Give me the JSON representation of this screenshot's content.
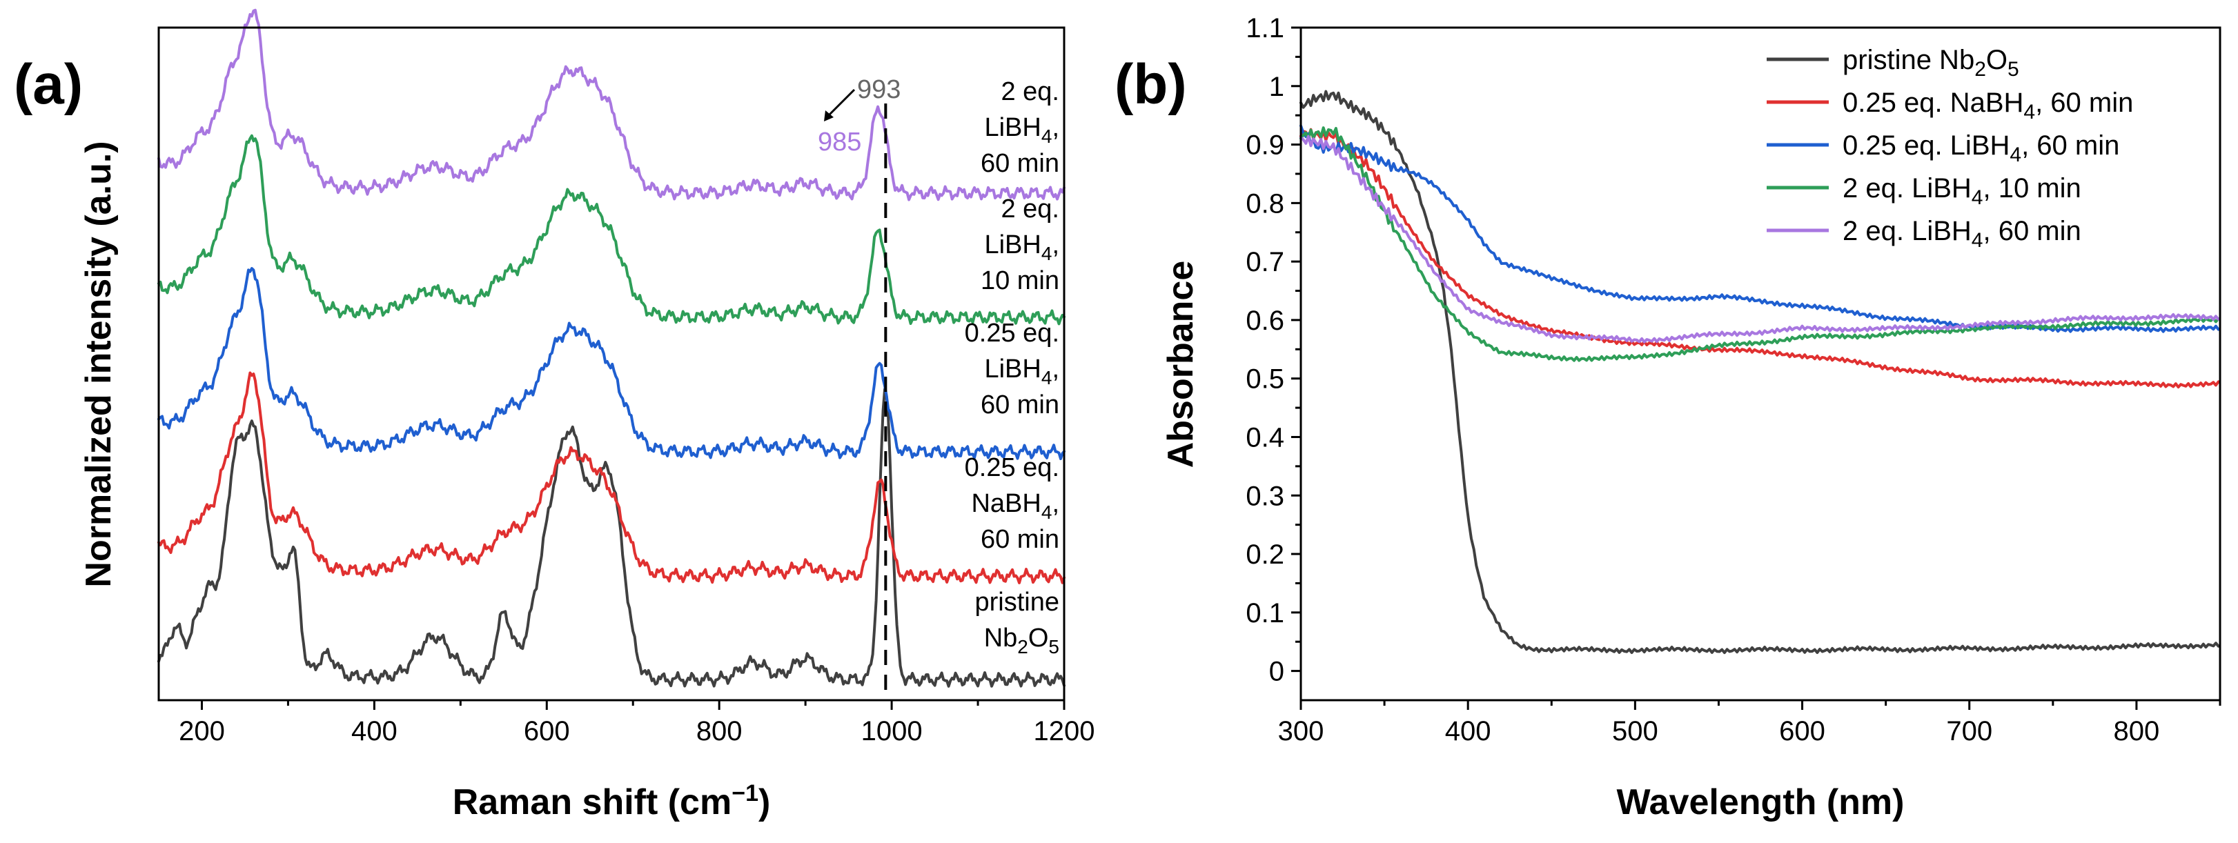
{
  "chart_data": [
    {
      "panel": "(a)",
      "type": "line",
      "xlabel": "Raman shift (cm",
      "xlabel_sup": "−1",
      "xlabel_end": ")",
      "ylabel": "Normalized intensity (a.u.)",
      "xlim": [
        150,
        1200
      ],
      "xticks": [
        200,
        400,
        600,
        800,
        1000,
        1200
      ],
      "yticks_shown": false,
      "grid": false,
      "reference_line": {
        "x": 993,
        "style": "dashed"
      },
      "annotations": {
        "peak_993": "993",
        "peak_985": "985"
      },
      "series": [
        {
          "name": "pristine Nb2O5",
          "label_lines": [
            [
              "pristine"
            ],
            [
              "Nb",
              {
                "sub": "2"
              },
              "O",
              {
                "sub": "5"
              }
            ]
          ],
          "color": "#404040",
          "offset": 0.0,
          "peak_center": 993
        },
        {
          "name": "0.25 eq. NaBH4, 60 min",
          "label_lines": [
            [
              "0.25 eq."
            ],
            [
              "NaBH",
              {
                "sub": "4"
              },
              ","
            ],
            [
              "60 min"
            ]
          ],
          "color": "#e03030",
          "offset": 1.0,
          "peak_center": 987
        },
        {
          "name": "0.25 eq. LiBH4, 60 min",
          "label_lines": [
            [
              "0.25 eq."
            ],
            [
              "LiBH",
              {
                "sub": "4"
              },
              ","
            ],
            [
              "60 min"
            ]
          ],
          "color": "#1f5fd0",
          "offset": 2.0,
          "peak_center": 986
        },
        {
          "name": "2 eq. LiBH4, 10 min",
          "label_lines": [
            [
              "2 eq."
            ],
            [
              "LiBH",
              {
                "sub": "4"
              },
              ","
            ],
            [
              "10 min"
            ]
          ],
          "color": "#2e9e58",
          "offset": 3.0,
          "peak_center": 985
        },
        {
          "name": "2 eq. LiBH4, 60 min",
          "label_lines": [
            [
              "2 eq."
            ],
            [
              "LiBH",
              {
                "sub": "4"
              },
              ","
            ],
            [
              "60 min"
            ]
          ],
          "color": "#a877e0",
          "offset": 4.0,
          "peak_center": 985
        }
      ]
    },
    {
      "panel": "(b)",
      "type": "line",
      "xlabel": "Wavelength (nm)",
      "ylabel": "Absorbance",
      "xlim": [
        300,
        850
      ],
      "ylim": [
        -0.05,
        1.1
      ],
      "xticks": [
        300,
        400,
        500,
        600,
        700,
        800
      ],
      "yticks": [
        0,
        0.1,
        0.2,
        0.3,
        0.4,
        0.5,
        0.6,
        0.7,
        0.8,
        0.9,
        1,
        1.1
      ],
      "ytick_labels": [
        "0",
        "0.1",
        "0.2",
        "0.3",
        "0.4",
        "0.5",
        "0.6",
        "0.7",
        "0.8",
        "0.9",
        "1",
        "1.1"
      ],
      "grid": false,
      "legend": "top-right",
      "series": [
        {
          "name": "pristine Nb2O5",
          "legend_parts": [
            "pristine Nb",
            {
              "sub": "2"
            },
            "O",
            {
              "sub": "5"
            }
          ],
          "color": "#404040",
          "x": [
            300,
            310,
            320,
            330,
            340,
            350,
            360,
            370,
            380,
            385,
            390,
            395,
            400,
            405,
            410,
            420,
            430,
            440,
            450,
            500,
            600,
            700,
            800,
            850
          ],
          "y": [
            0.96,
            0.98,
            0.99,
            0.97,
            0.95,
            0.92,
            0.88,
            0.82,
            0.73,
            0.66,
            0.55,
            0.4,
            0.26,
            0.18,
            0.12,
            0.07,
            0.045,
            0.038,
            0.036,
            0.036,
            0.036,
            0.038,
            0.042,
            0.045
          ]
        },
        {
          "name": "0.25 eq. NaBH4, 60 min",
          "legend_parts": [
            "0.25 eq. NaBH",
            {
              "sub": "4"
            },
            ", 60 min"
          ],
          "color": "#e03030",
          "x": [
            300,
            320,
            340,
            360,
            380,
            400,
            420,
            450,
            500,
            550,
            600,
            650,
            700,
            750,
            800,
            850
          ],
          "y": [
            0.92,
            0.92,
            0.86,
            0.78,
            0.7,
            0.64,
            0.61,
            0.58,
            0.56,
            0.55,
            0.54,
            0.52,
            0.5,
            0.495,
            0.49,
            0.49
          ]
        },
        {
          "name": "0.25 eq. LiBH4, 60 min",
          "legend_parts": [
            "0.25 eq. LiBH",
            {
              "sub": "4"
            },
            ", 60 min"
          ],
          "color": "#1f5fd0",
          "x": [
            300,
            310,
            330,
            350,
            370,
            380,
            390,
            400,
            410,
            420,
            450,
            500,
            550,
            600,
            650,
            700,
            750,
            800,
            850
          ],
          "y": [
            0.93,
            0.9,
            0.89,
            0.87,
            0.85,
            0.83,
            0.8,
            0.77,
            0.73,
            0.7,
            0.67,
            0.635,
            0.64,
            0.625,
            0.605,
            0.59,
            0.585,
            0.585,
            0.585
          ]
        },
        {
          "name": "2 eq. LiBH4, 10 min",
          "legend_parts": [
            "2 eq. LiBH",
            {
              "sub": "4"
            },
            ", 10 min"
          ],
          "color": "#2e9e58",
          "x": [
            300,
            320,
            340,
            360,
            380,
            400,
            420,
            450,
            500,
            550,
            600,
            650,
            700,
            750,
            800,
            850
          ],
          "y": [
            0.92,
            0.92,
            0.84,
            0.74,
            0.64,
            0.58,
            0.545,
            0.535,
            0.535,
            0.555,
            0.57,
            0.575,
            0.585,
            0.59,
            0.595,
            0.6
          ]
        },
        {
          "name": "2 eq. LiBH4, 60 min",
          "legend_parts": [
            "2 eq. LiBH",
            {
              "sub": "4"
            },
            ", 60 min"
          ],
          "color": "#a877e0",
          "x": [
            300,
            320,
            340,
            360,
            380,
            400,
            420,
            450,
            500,
            550,
            600,
            650,
            700,
            750,
            800,
            850
          ],
          "y": [
            0.91,
            0.89,
            0.83,
            0.76,
            0.68,
            0.62,
            0.595,
            0.575,
            0.565,
            0.575,
            0.585,
            0.585,
            0.59,
            0.6,
            0.605,
            0.605
          ]
        }
      ]
    }
  ]
}
